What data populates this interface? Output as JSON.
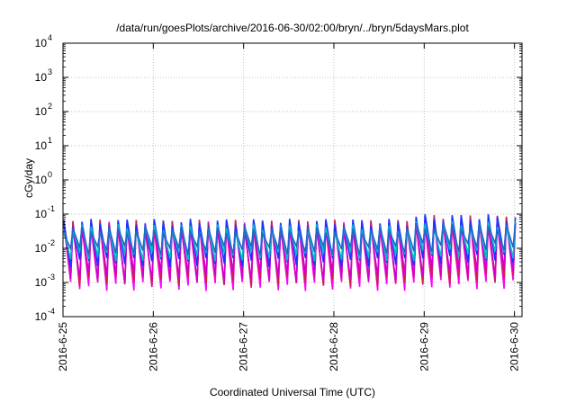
{
  "chart_data": {
    "type": "line",
    "title": "/data/run/goesPlots/archive/2016-06-30/02:00/bryn/../bryn/5daysMars.plot",
    "xlabel": "Coordinated Universal Time (UTC)",
    "ylabel": "cGy/day",
    "y_scale": "log",
    "ylim": [
      0.0001,
      10000
    ],
    "xlim": [
      "2016-06-25 00:00",
      "2016-06-30 02:00"
    ],
    "grid": true,
    "legend": "none",
    "x_ticks": [
      "2016-6-25",
      "2016-6-26",
      "2016-6-27",
      "2016-6-28",
      "2016-6-29",
      "2016-6-30"
    ],
    "y_ticks": [
      {
        "value": 0.0001,
        "base": "10",
        "exp": "-4"
      },
      {
        "value": 0.001,
        "base": "10",
        "exp": "-3"
      },
      {
        "value": 0.01,
        "base": "10",
        "exp": "-2"
      },
      {
        "value": 0.1,
        "base": "10",
        "exp": "-1"
      },
      {
        "value": 1,
        "base": "10",
        "exp": "0"
      },
      {
        "value": 10,
        "base": "10",
        "exp": "1"
      },
      {
        "value": 100,
        "base": "10",
        "exp": "2"
      },
      {
        "value": 1000,
        "base": "10",
        "exp": "3"
      },
      {
        "value": 10000,
        "base": "10",
        "exp": "4"
      }
    ],
    "sawtooth": {
      "cycles_per_day": 10,
      "start_day_fraction": 0.0
    },
    "series": [
      {
        "color": "#ff00ff",
        "peaks_day1to3": 0.05,
        "troughs_day1to3": 0.0008,
        "peaks_late": 0.06,
        "troughs_late": 0.0009
      },
      {
        "color": "#cc2244",
        "peaks_day1to3": 0.055,
        "troughs_day1to3": 0.0011,
        "peaks_late": 0.075,
        "troughs_late": 0.0013
      },
      {
        "color": "#d000d0",
        "peaks_day1to3": 0.045,
        "troughs_day1to3": 0.0015,
        "peaks_late": 0.065,
        "troughs_late": 0.002
      },
      {
        "color": "#1a33ff",
        "peaks_day1to3": 0.058,
        "troughs_day1to3": 0.004,
        "peaks_late": 0.08,
        "troughs_late": 0.005
      },
      {
        "color": "#00c0c0",
        "peaks_day1to3": 0.04,
        "troughs_day1to3": 0.006,
        "peaks_late": 0.05,
        "troughs_late": 0.007
      },
      {
        "color": "#2266cc",
        "peaks_day1to3": 0.035,
        "troughs_day1to3": 0.009,
        "peaks_late": 0.045,
        "troughs_late": 0.011
      }
    ]
  }
}
